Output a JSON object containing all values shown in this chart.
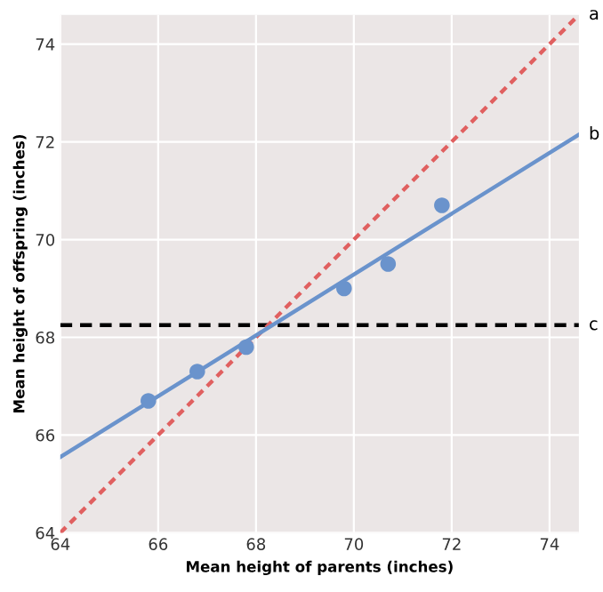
{
  "chart_data": {
    "type": "scatter",
    "xlabel": "Mean height of parents (inches)",
    "ylabel": "Mean height of offspring (inches)",
    "xlim": [
      64,
      74.6
    ],
    "ylim": [
      64,
      74.6
    ],
    "xticks": [
      64,
      66,
      68,
      70,
      72,
      74
    ],
    "yticks": [
      64,
      66,
      68,
      70,
      72,
      74
    ],
    "grid": true,
    "series": [
      {
        "color": "#6a93cc",
        "x": [
          65.8,
          66.8,
          67.8,
          69.8,
          70.7,
          71.8
        ],
        "values": [
          66.7,
          67.3,
          67.8,
          69.0,
          69.5,
          70.7
        ],
        "marker": "circle"
      },
      {
        "type": "line",
        "name": "a",
        "color": "#e06060",
        "x": [
          64,
          74.6
        ],
        "values": [
          64,
          74.6
        ],
        "line_style": "dotted"
      },
      {
        "type": "line",
        "name": "b",
        "color": "#6a93cc",
        "x": [
          64,
          74.6
        ],
        "values": [
          65.55,
          72.15
        ],
        "line_style": "solid"
      }
    ],
    "ref_lines": [
      {
        "axis": "y",
        "value": 68.25,
        "label": "c",
        "color": "#000000",
        "line_style": "dashed"
      }
    ]
  }
}
